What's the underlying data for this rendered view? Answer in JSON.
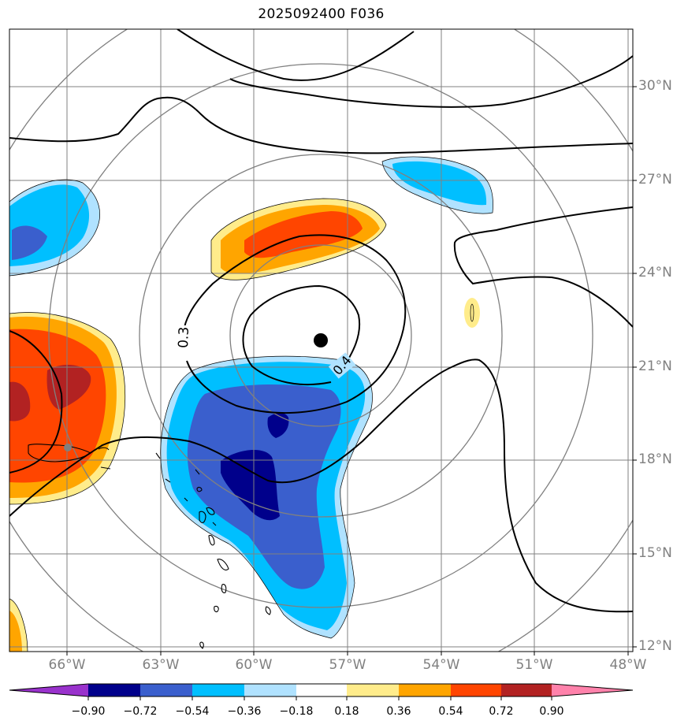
{
  "title": "2025092400 F036",
  "lat_labels": [
    "30°N",
    "27°N",
    "24°N",
    "21°N",
    "18°N",
    "15°N",
    "12°N"
  ],
  "lon_labels": [
    "66°W",
    "63°W",
    "60°W",
    "57°W",
    "54°W",
    "51°W",
    "48°W"
  ],
  "contour_labels": [
    "0.3",
    "0.4"
  ],
  "colorbar": {
    "ticks": [
      "−0.90",
      "−0.72",
      "−0.54",
      "−0.36",
      "−0.18",
      "0.18",
      "0.36",
      "0.54",
      "0.72",
      "0.90"
    ],
    "colors": [
      "#9932cc",
      "#00008b",
      "#3a5fcd",
      "#00bfff",
      "#b0e2ff",
      "#ffffff",
      "#ffec8b",
      "#ffa500",
      "#ff4500",
      "#b22222",
      "#ff82ab"
    ]
  },
  "colors": {
    "dark_blue": "#00008b",
    "royal_blue": "#3a5fcd",
    "sky_blue": "#00bfff",
    "light_blue": "#b0e2ff",
    "light_yellow": "#ffec8b",
    "orange": "#ffa500",
    "red_orange": "#ff4500",
    "firebrick": "#b22222",
    "grid": "#808080"
  }
}
